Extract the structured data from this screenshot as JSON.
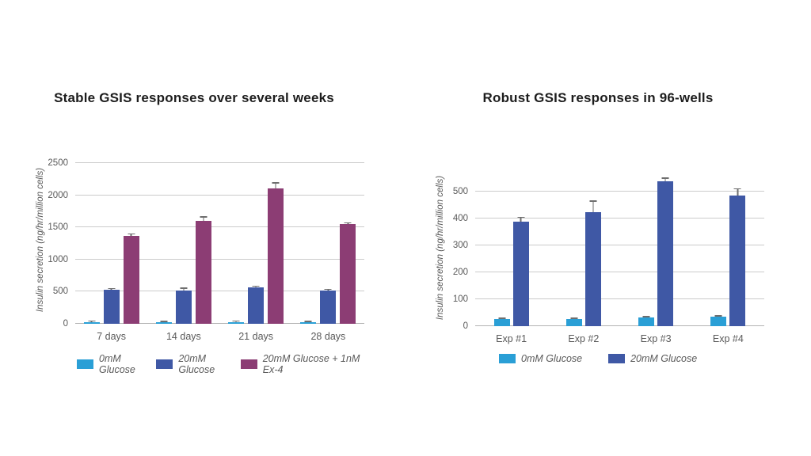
{
  "page": {
    "background": "#ffffff"
  },
  "colors": {
    "title": "#1d1d1d",
    "axis": "#595959",
    "grid": "#cbcbcb",
    "baseline": "#b3b3b3",
    "err": "#6e6e6e"
  },
  "chart_data": [
    {
      "type": "bar",
      "title": "Stable GSIS responses over several weeks",
      "xlabel": "",
      "ylabel": "Insulin secretion (ng/hr/million cells)",
      "categories": [
        "7 days",
        "14 days",
        "21 days",
        "28 days"
      ],
      "yticks": [
        0,
        500,
        1000,
        1500,
        2000,
        2500
      ],
      "ylim": [
        0,
        2500
      ],
      "grid": true,
      "legend_position": "bottom",
      "series": [
        {
          "name": "0mM Glucose",
          "color": "#2a9fd6",
          "values": [
            25,
            20,
            25,
            20
          ],
          "errors": [
            8,
            6,
            8,
            6
          ]
        },
        {
          "name": "20mM Glucose",
          "color": "#3f58a5",
          "values": [
            530,
            520,
            570,
            520
          ],
          "errors": [
            15,
            45,
            25,
            12
          ]
        },
        {
          "name": "20mM Glucose + 1nM Ex-4",
          "color": "#8c3d74",
          "values": [
            1370,
            1600,
            2100,
            1550
          ],
          "errors": [
            40,
            70,
            100,
            30
          ]
        }
      ]
    },
    {
      "type": "bar",
      "title": "Robust GSIS responses in 96-wells",
      "xlabel": "",
      "ylabel": "Insulin secretion (ng/hr/million cells)",
      "categories": [
        "Exp #1",
        "Exp #2",
        "Exp #3",
        "Exp #4"
      ],
      "yticks": [
        0,
        100,
        200,
        300,
        400,
        500
      ],
      "ylim": [
        0,
        500
      ],
      "grid": true,
      "legend_position": "bottom",
      "series": [
        {
          "name": "0mM Glucose",
          "color": "#2a9fd6",
          "values": [
            26,
            26,
            32,
            35
          ],
          "errors": [
            4,
            4,
            4,
            4
          ]
        },
        {
          "name": "20mM Glucose",
          "color": "#3f58a5",
          "values": [
            388,
            425,
            538,
            485
          ],
          "errors": [
            18,
            42,
            14,
            28
          ]
        }
      ]
    }
  ]
}
